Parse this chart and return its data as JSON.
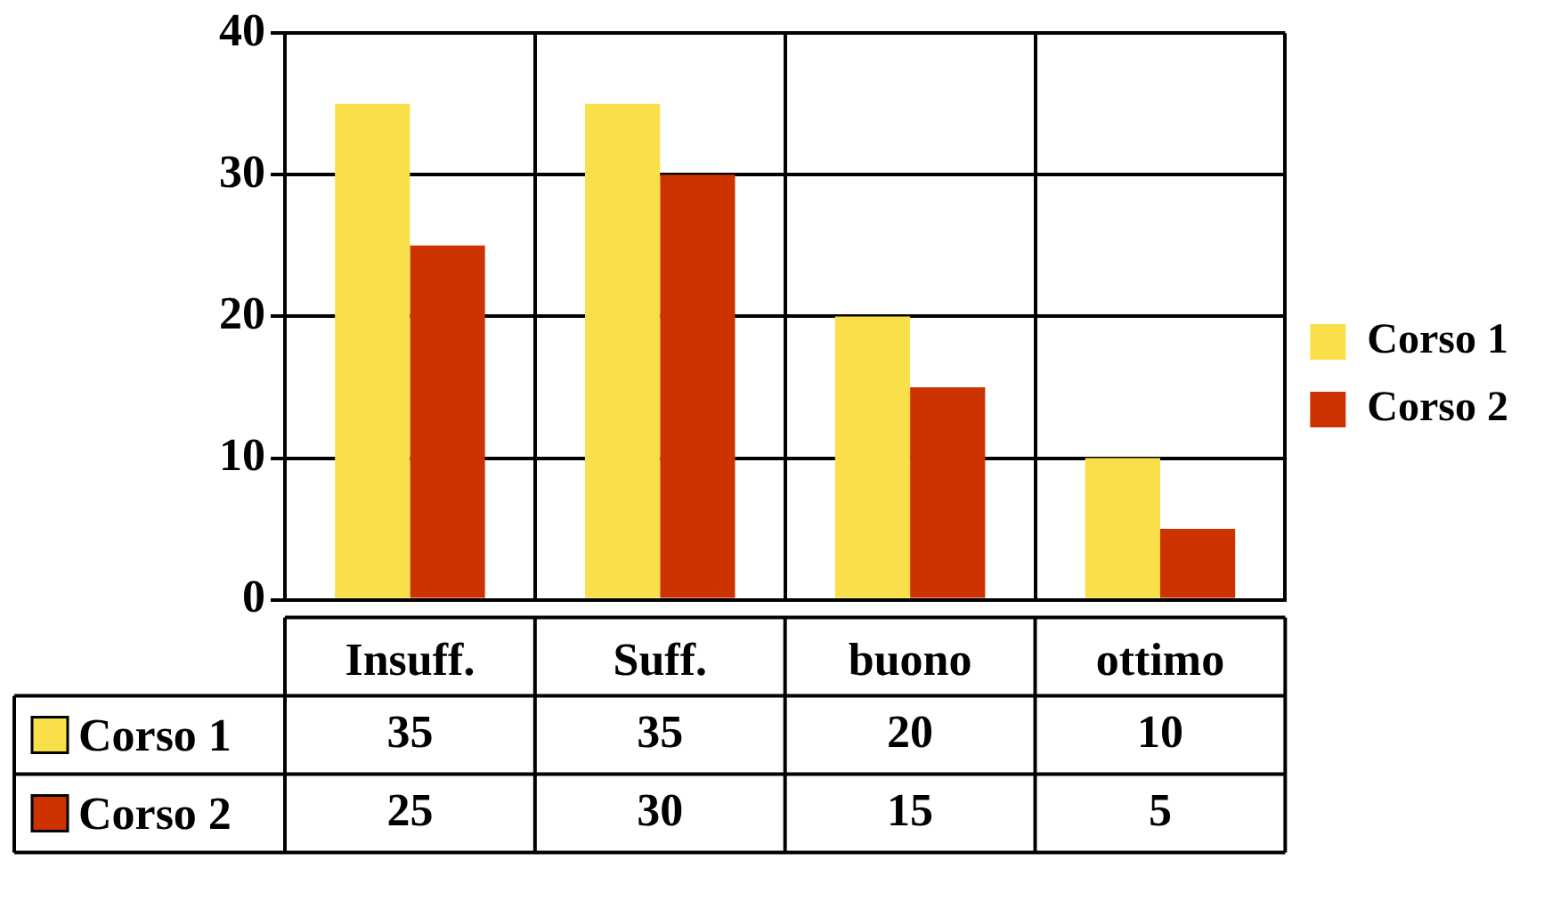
{
  "chart_data": {
    "type": "bar",
    "categories": [
      "Insuff.",
      "Suff.",
      "buono",
      "ottimo"
    ],
    "series": [
      {
        "name": "Corso 1",
        "color": "#f9e04b",
        "values": [
          35,
          35,
          20,
          10
        ]
      },
      {
        "name": "Corso 2",
        "color": "#cc3300",
        "values": [
          25,
          30,
          15,
          5
        ]
      }
    ],
    "ylim": [
      0,
      40
    ],
    "yticks": [
      0,
      10,
      20,
      30,
      40
    ],
    "grid": true,
    "legend": "right",
    "data_labels": true
  }
}
